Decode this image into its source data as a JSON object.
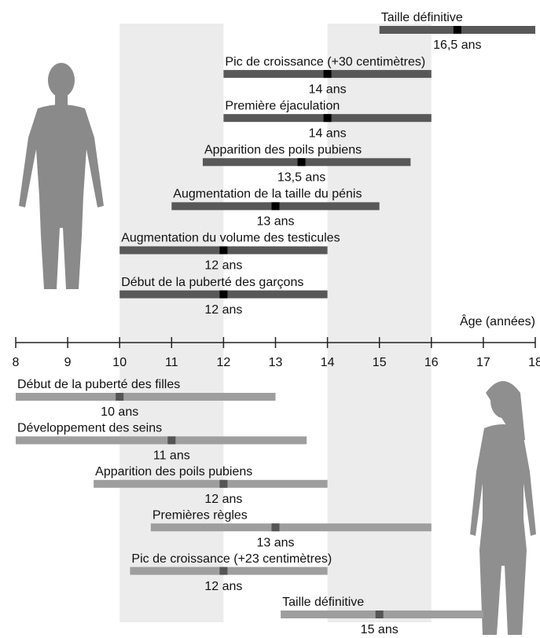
{
  "chart_data": {
    "type": "range",
    "xlabel": "Âge (années)",
    "xlim": [
      8,
      18
    ],
    "xticks": [
      8,
      9,
      10,
      11,
      12,
      13,
      14,
      15,
      16,
      17,
      18
    ],
    "shaded_ranges": [
      [
        10,
        12
      ],
      [
        14,
        16
      ]
    ],
    "shade_color": "#ececec",
    "series": [
      {
        "group": "boys",
        "color": "#585858",
        "marker_color": "#000000",
        "names": [
          "Taille définitive",
          "Pic de croissance (+30 centimètres)",
          "Première éjaculation",
          "Apparition des poils pubiens",
          "Augmentation de la taille du pénis",
          "Augmentation du volume des testicules",
          "Début de la puberté des garçons"
        ],
        "starts": [
          15,
          12,
          12,
          11.6,
          11,
          10,
          10
        ],
        "ends": [
          18,
          16,
          16,
          15.6,
          15,
          14,
          14
        ],
        "values": [
          16.5,
          14,
          14,
          13.5,
          13,
          12,
          12
        ],
        "value_labels": [
          "16,5 ans",
          "14 ans",
          "14 ans",
          "13,5 ans",
          "13 ans",
          "12 ans",
          "12 ans"
        ]
      },
      {
        "group": "girls",
        "color": "#9e9e9e",
        "marker_color": "#555555",
        "names": [
          "Début de la puberté des filles",
          "Développement des seins",
          "Apparition des poils pubiens",
          "Premières règles",
          "Pic de croissance (+23 centimètres)",
          "Taille définitive"
        ],
        "starts": [
          8,
          8,
          9.5,
          10.6,
          10.2,
          13.1
        ],
        "ends": [
          13,
          13.6,
          14,
          16,
          14,
          17
        ],
        "values": [
          10,
          11,
          12,
          13,
          12,
          15
        ],
        "value_labels": [
          "10 ans",
          "11 ans",
          "12 ans",
          "13 ans",
          "12 ans",
          "15 ans"
        ]
      }
    ]
  }
}
